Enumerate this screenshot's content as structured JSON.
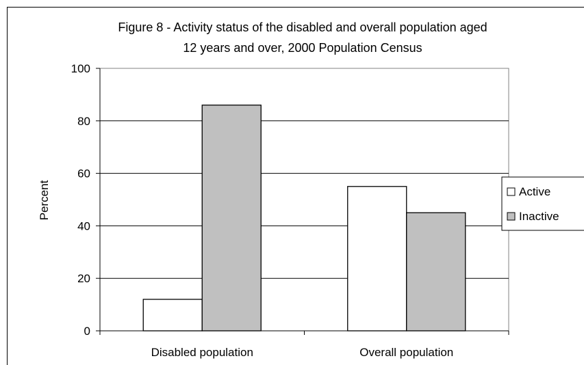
{
  "chart_data": {
    "type": "bar",
    "title_lines": [
      "Figure 8 - Activity status of the disabled and overall population aged",
      "12 years and over, 2000 Population Census"
    ],
    "xlabel": "",
    "ylabel": "Percent",
    "categories": [
      "Disabled population",
      "Overall population"
    ],
    "series": [
      {
        "name": "Active",
        "values": [
          12,
          55
        ],
        "color": "#ffffff"
      },
      {
        "name": "Inactive",
        "values": [
          86,
          45
        ],
        "color": "#c0c0c0"
      }
    ],
    "ylim": [
      0,
      100
    ],
    "yticks": [
      0,
      20,
      40,
      60,
      80,
      100
    ],
    "grid": true,
    "legend_position": "right"
  }
}
